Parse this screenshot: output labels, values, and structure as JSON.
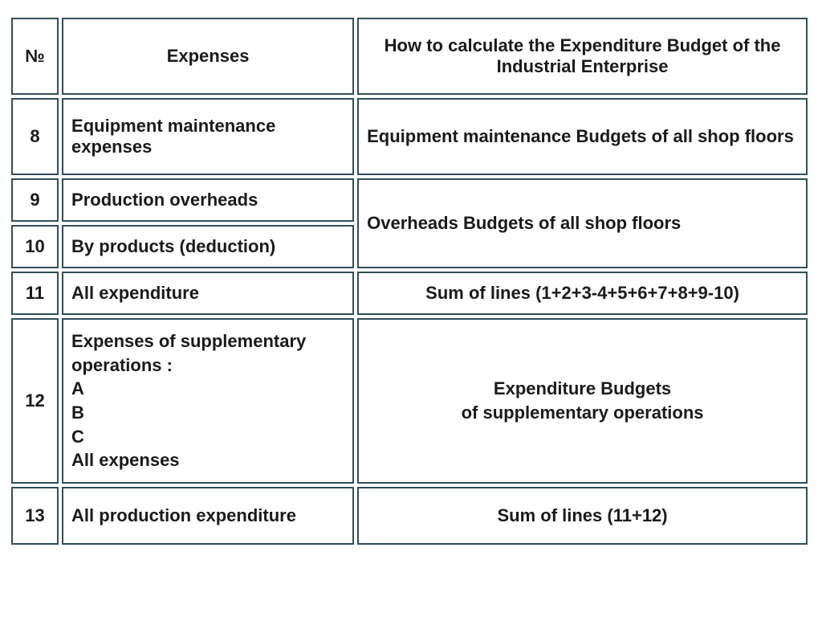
{
  "table": {
    "border_color": "#2f4f5f",
    "background_color": "#ffffff",
    "text_color": "#1a1a1a",
    "highlight_color": "#c00020",
    "font_size_pt": 16,
    "font_weight": "bold",
    "columns": [
      {
        "key": "num",
        "label": "№",
        "width_pct": 6,
        "align": "center"
      },
      {
        "key": "expenses",
        "label": "Expenses",
        "width_pct": 37,
        "align": "center"
      },
      {
        "key": "how",
        "label": "How to calculate the Expenditure Budget of the Industrial Enterprise",
        "width_pct": 57,
        "align": "center"
      }
    ],
    "rows": [
      {
        "num": "8",
        "expenses": "Equipment maintenance expenses",
        "expenses_align": "left",
        "how": "Equipment maintenance Budgets of all shop floors",
        "how_align": "left",
        "how_rowspan": 1
      },
      {
        "num": "9",
        "expenses": "Production overheads",
        "expenses_align": "left",
        "how": "Overheads Budgets of all shop floors",
        "how_align": "left",
        "how_rowspan": 2
      },
      {
        "num": "10",
        "expenses": "By products (deduction)",
        "expenses_align": "left"
      },
      {
        "num": "11",
        "expenses": "All expenditure",
        "expenses_align": "left",
        "how": "Sum of lines (1+2+3-4+5+6+7+8+9-10)",
        "how_align": "center",
        "how_rowspan": 1
      },
      {
        "num": "12",
        "expenses": "Expenses of supplementary operations :\nA\nB\nC\nAll expenses",
        "expenses_align": "left",
        "how": "Expenditure Budgets\nof supplementary operations",
        "how_align": "center",
        "how_rowspan": 1
      },
      {
        "num": "13",
        "expenses": "All production expenditure",
        "expenses_align": "left",
        "expenses_highlight": true,
        "how": "Sum of lines (11+12)",
        "how_align": "center",
        "how_rowspan": 1
      }
    ]
  }
}
